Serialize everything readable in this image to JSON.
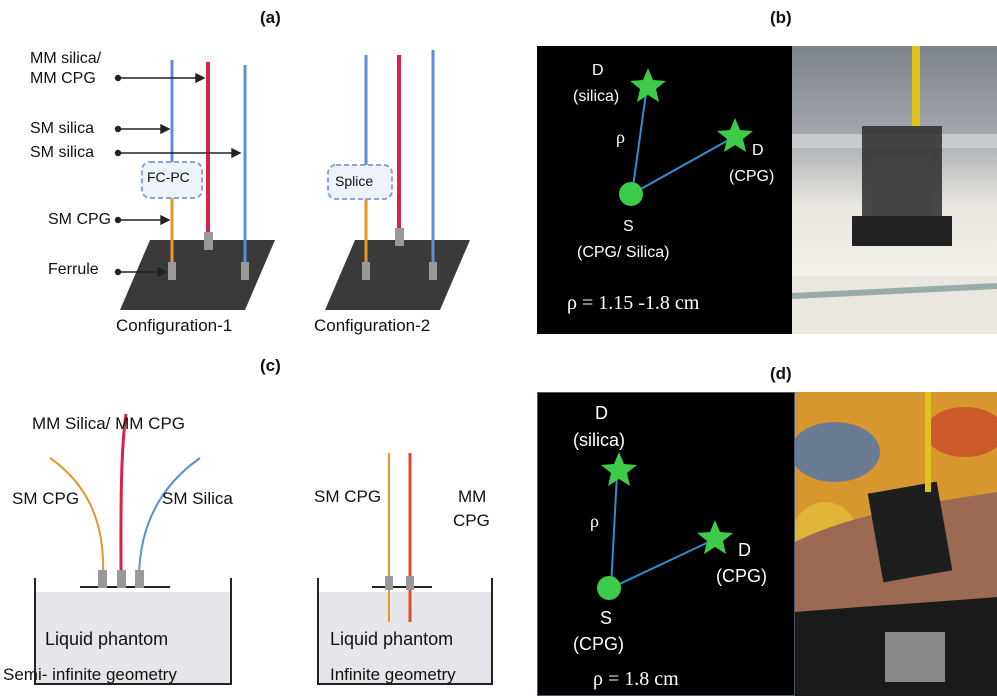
{
  "panels": {
    "a": {
      "label": "(a)",
      "mm_fiber_label": "MM silica/\nMM CPG",
      "mm_line1": "MM silica/",
      "mm_line2": "MM CPG",
      "sm_silica_1": "SM silica",
      "sm_silica_2": "SM silica",
      "fcpc_label": "FC-PC",
      "sm_cpg": "SM CPG",
      "ferrule": "Ferrule",
      "config1": "Configuration-1",
      "config2": "Configuration-2",
      "splice_label": "Splice"
    },
    "b": {
      "label": "(b)",
      "det1": "D",
      "det1_sub": "(silica)",
      "det2": "D",
      "det2_sub": "(CPG)",
      "rho": "ρ",
      "source": "S",
      "source_sub": "(CPG/ Silica)",
      "distance": "ρ = 1.15 -1.8 cm"
    },
    "c": {
      "label": "(c)",
      "mm_fibers": "MM Silica/ MM CPG",
      "sm_cpg_left": "SM CPG",
      "sm_silica": "SM Silica",
      "sm_cpg_right": "SM CPG",
      "mm_cpg_1": "MM",
      "mm_cpg_2": "CPG",
      "phantom_left": "Liquid phantom",
      "phantom_right": "Liquid phantom",
      "geom_left": "Semi- infinite geometry",
      "geom_right": "Infinite geometry"
    },
    "d": {
      "label": "(d)",
      "det1": "D",
      "det1_sub": "(silica)",
      "det2": "D",
      "det2_sub": "(CPG)",
      "rho": "ρ",
      "source": "S",
      "source_sub": "(CPG)",
      "distance": "ρ = 1.8 cm"
    }
  },
  "colors": {
    "sm_fiber_blue": "#5b8fd9",
    "mm_fiber_red": "#d9214a",
    "sm_cpg_orange": "#e8952a",
    "ferrule_plate": "#3a3a3a",
    "star_green": "#3ecb4a",
    "line_blue": "#2f8fd0",
    "phantom_fill": "#e4e6ea"
  }
}
